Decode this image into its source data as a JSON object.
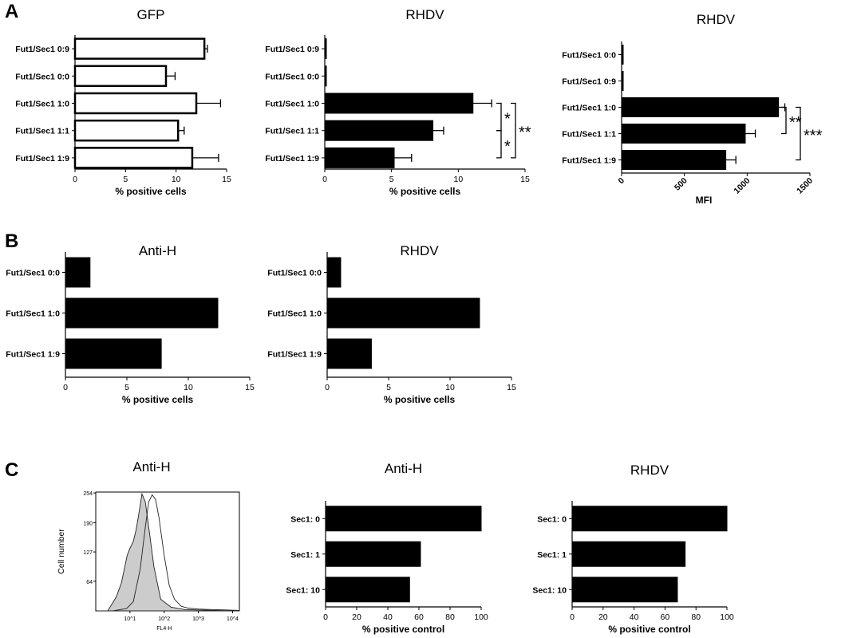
{
  "panels": {
    "A": "A",
    "B": "B",
    "C": "C"
  },
  "chart_data": [
    {
      "id": "a1",
      "type": "bar",
      "orientation": "horizontal",
      "fill": "white",
      "title": "GFP",
      "xlabel": "% positive cells",
      "xlim": [
        0,
        15
      ],
      "xticks": [
        "0",
        "5",
        "10",
        "15"
      ],
      "categories": [
        "Fut1/Sec1 0:9",
        "Fut1/Sec1 0:0",
        "Fut1/Sec1 1:0",
        "Fut1/Sec1 1:1",
        "Fut1/Sec1 1:9"
      ],
      "values": [
        12.8,
        9.0,
        12.0,
        10.2,
        11.6
      ],
      "errors": [
        0.3,
        0.9,
        2.4,
        0.6,
        2.6
      ],
      "significance": []
    },
    {
      "id": "a2",
      "type": "bar",
      "orientation": "horizontal",
      "fill": "black",
      "title": "RHDV",
      "xlabel": "% positive cells",
      "xlim": [
        0,
        15
      ],
      "xticks": [
        "0",
        "5",
        "10",
        "15"
      ],
      "categories": [
        "Fut1/Sec1 0:9",
        "Fut1/Sec1 0:0",
        "Fut1/Sec1 1:0",
        "Fut1/Sec1 1:1",
        "Fut1/Sec1 1:9"
      ],
      "values": [
        0.1,
        0.1,
        11.1,
        8.1,
        5.2
      ],
      "errors": [
        0,
        0,
        1.4,
        0.8,
        1.3
      ],
      "significance": [
        {
          "from": 2,
          "to": 3,
          "label": "*",
          "level": 0
        },
        {
          "from": 3,
          "to": 4,
          "label": "*",
          "level": 0
        },
        {
          "from": 2,
          "to": 4,
          "label": "**",
          "level": 1
        }
      ]
    },
    {
      "id": "a3",
      "type": "bar",
      "orientation": "horizontal",
      "fill": "black",
      "title": "RHDV",
      "xlabel": "MFI",
      "xlim": [
        0,
        1500
      ],
      "xticks": [
        "0",
        "500",
        "1000",
        "1500"
      ],
      "rotate_ticks": true,
      "categories": [
        "Fut1/Sec1 0:0",
        "Fut1/Sec1 0:9",
        "Fut1/Sec1 1:0",
        "Fut1/Sec1 1:1",
        "Fut1/Sec1 1:9"
      ],
      "values": [
        8,
        12,
        1250,
        985,
        830
      ],
      "errors": [
        0,
        0,
        50,
        80,
        80
      ],
      "significance": [
        {
          "from": 2,
          "to": 3,
          "label": "**",
          "level": 0
        },
        {
          "from": 2,
          "to": 4,
          "label": "***",
          "level": 1
        }
      ]
    },
    {
      "id": "b1",
      "type": "bar",
      "orientation": "horizontal",
      "fill": "black",
      "title": "Anti-H",
      "xlabel": "% positive cells",
      "xlim": [
        0,
        15
      ],
      "xticks": [
        "0",
        "5",
        "10",
        "15"
      ],
      "categories": [
        "Fut1/Sec1 0:0",
        "Fut1/Sec1 1:0",
        "Fut1/Sec1 1:9"
      ],
      "values": [
        2.0,
        12.4,
        7.8
      ],
      "errors": [],
      "significance": []
    },
    {
      "id": "b2",
      "type": "bar",
      "orientation": "horizontal",
      "fill": "black",
      "title": "RHDV",
      "xlabel": "% positive cells",
      "xlim": [
        0,
        15
      ],
      "xticks": [
        "0",
        "5",
        "10",
        "15"
      ],
      "categories": [
        "Fut1/Sec1 0:0",
        "Fut1/Sec1 1:0",
        "Fut1/Sec1 1:9"
      ],
      "values": [
        1.1,
        12.4,
        3.6
      ],
      "errors": [],
      "significance": []
    },
    {
      "id": "c2",
      "type": "bar",
      "orientation": "horizontal",
      "fill": "black",
      "title": "Anti-H",
      "xlabel": "% positive control",
      "xlim": [
        0,
        100
      ],
      "xticks": [
        "0",
        "20",
        "40",
        "60",
        "80",
        "100"
      ],
      "categories": [
        "Sec1: 0",
        "Sec1: 1",
        "Sec1: 10"
      ],
      "values": [
        100,
        61,
        54
      ],
      "errors": [],
      "significance": []
    },
    {
      "id": "c3",
      "type": "bar",
      "orientation": "horizontal",
      "fill": "black",
      "title": "RHDV",
      "xlabel": "% positive control",
      "xlim": [
        0,
        100
      ],
      "xticks": [
        "0",
        "20",
        "40",
        "60",
        "80",
        "100"
      ],
      "categories": [
        "Sec1: 0",
        "Sec1: 1",
        "Sec1: 10"
      ],
      "values": [
        100,
        73,
        68
      ],
      "errors": [],
      "significance": []
    },
    {
      "id": "c1",
      "type": "area",
      "subtype": "flow-cytometry histogram",
      "title": "Anti-H",
      "ylabel": "Cell number",
      "xlabel": "FL4-H",
      "yticks": [
        "64",
        "127",
        "190",
        "254"
      ],
      "xticks": [
        "10^1",
        "10^2",
        "10^3",
        "10^4"
      ],
      "series": [
        {
          "fill": "grey",
          "x_log": [
            0.05,
            0.35,
            0.6,
            0.75,
            0.85,
            0.92,
            1.0,
            1.1,
            1.18,
            1.25,
            1.35,
            1.45,
            1.55,
            1.7,
            1.9,
            2.2,
            2.6,
            3.0,
            3.5,
            4.2
          ],
          "y": [
            0,
            0,
            30,
            60,
            95,
            120,
            135,
            150,
            175,
            205,
            252,
            235,
            180,
            95,
            25,
            8,
            3,
            2,
            1,
            0
          ]
        },
        {
          "fill": "none",
          "x_log": [
            0.05,
            0.5,
            0.9,
            1.1,
            1.3,
            1.45,
            1.55,
            1.65,
            1.75,
            1.85,
            2.0,
            2.15,
            2.3,
            2.5,
            2.7,
            3.0,
            3.4,
            3.8,
            4.2
          ],
          "y": [
            0,
            0,
            5,
            20,
            90,
            180,
            235,
            250,
            240,
            200,
            120,
            55,
            25,
            10,
            6,
            4,
            3,
            2,
            1
          ]
        }
      ]
    }
  ]
}
